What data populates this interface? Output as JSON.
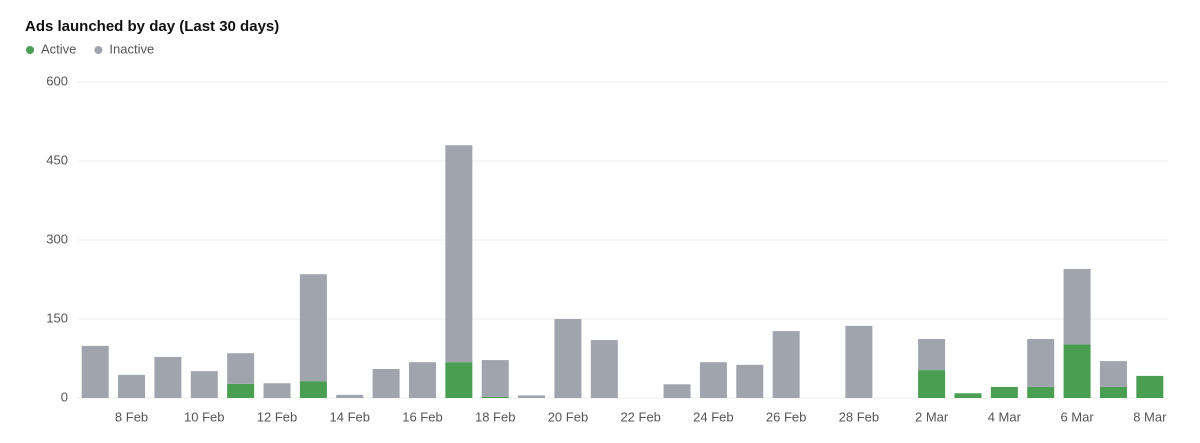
{
  "chart_data": {
    "type": "stacked_bar",
    "title": "Ads launched by day (Last 30 days)",
    "categories": [
      null,
      "8 Feb",
      null,
      "10 Feb",
      null,
      "12 Feb",
      null,
      "14 Feb",
      null,
      "16 Feb",
      null,
      "18 Feb",
      null,
      "20 Feb",
      null,
      "22 Feb",
      null,
      "24 Feb",
      null,
      "26 Feb",
      null,
      "28 Feb",
      null,
      "2 Mar",
      null,
      "4 Mar",
      null,
      "6 Mar",
      null,
      "8 Mar"
    ],
    "series": [
      {
        "name": "Active",
        "color": "#4a9e52",
        "values": [
          0,
          0,
          0,
          0,
          27,
          0,
          32,
          0,
          0,
          0,
          68,
          2,
          0,
          0,
          0,
          0,
          0,
          0,
          0,
          0,
          0,
          0,
          0,
          53,
          9,
          21,
          21,
          102,
          21,
          42
        ]
      },
      {
        "name": "Inactive",
        "color": "#a0a4ad",
        "values": [
          99,
          44,
          78,
          51,
          58,
          28,
          203,
          6,
          55,
          68,
          412,
          70,
          5,
          150,
          110,
          0,
          26,
          68,
          63,
          127,
          0,
          137,
          0,
          59,
          0,
          0,
          91,
          143,
          49,
          0
        ]
      }
    ],
    "ylim": [
      0,
      600
    ],
    "yticks": [
      0,
      150,
      300,
      450,
      600
    ],
    "grid": true
  }
}
